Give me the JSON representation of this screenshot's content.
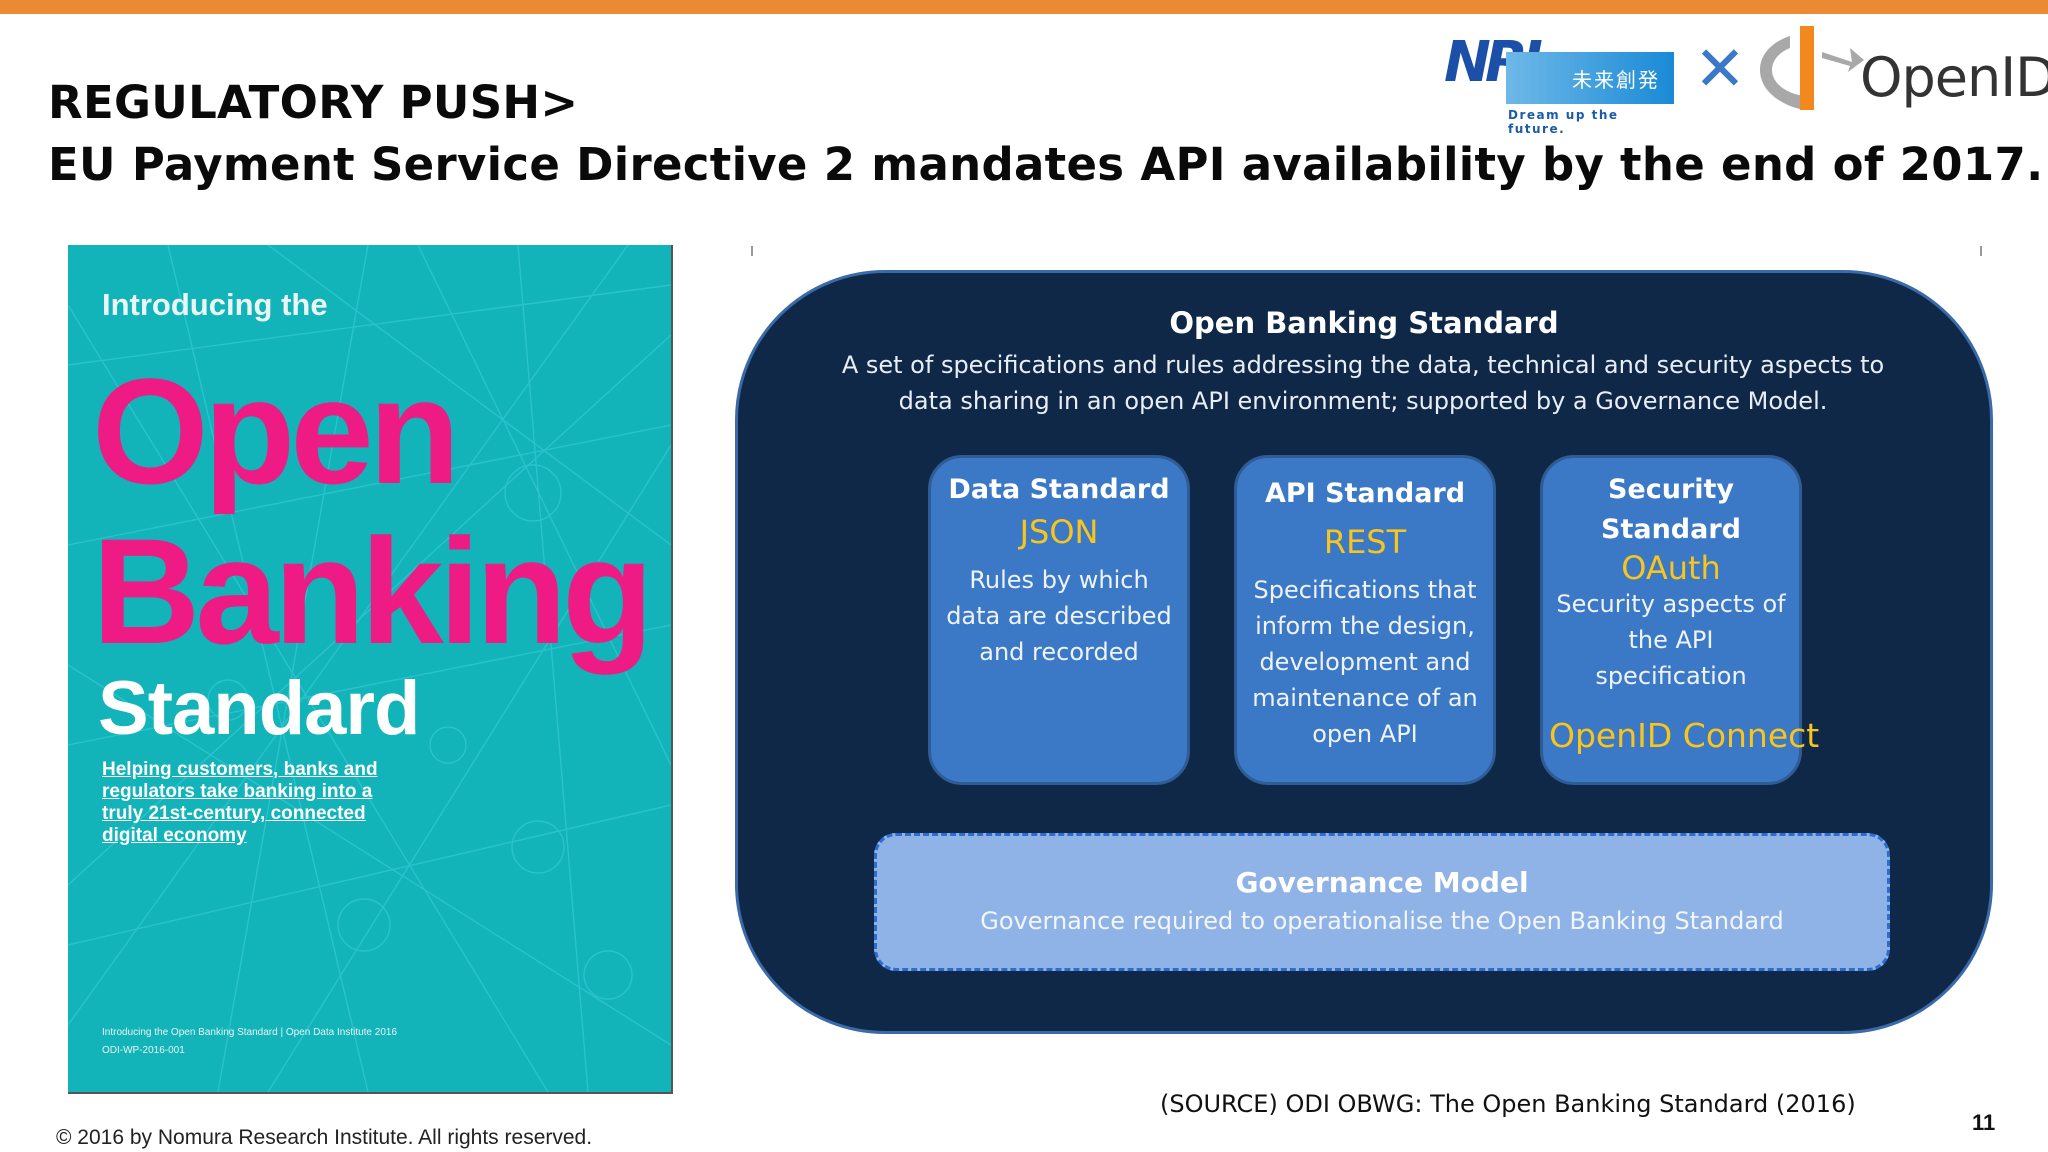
{
  "header": {
    "title_line1": "REGULATORY PUSH>",
    "title_line2": "EU Payment Service Directive 2 mandates API availability by the end of 2017."
  },
  "logos": {
    "nri_letters": "NRI",
    "nri_japanese": "未来創発",
    "nri_tagline": "Dream up the future.",
    "times_symbol": "✕",
    "openid_text": "OpenID",
    "openid_reg": "®"
  },
  "cover": {
    "intro": "Introducing the",
    "open": "Open",
    "banking": "Banking",
    "standard": "Standard",
    "subtitle": "Helping customers, banks and regulators take banking into a truly 21st-century, connected digital economy",
    "footer_line1": "Introducing the Open Banking Standard | Open Data Institute 2016",
    "footer_line2": "ODI-WP-2016-001"
  },
  "diagram": {
    "title": "Open Banking Standard",
    "description": "A set of specifications and rules addressing the data, technical and  security aspects to data sharing in an open API environment; supported by a Governance Model.",
    "boxes": [
      {
        "title": "Data Standard",
        "key": "JSON",
        "desc": "Rules by which data are described and recorded",
        "extra": ""
      },
      {
        "title": "API Standard",
        "key": "REST",
        "desc": "Specifications that inform the design, development and maintenance of an open API",
        "extra": ""
      },
      {
        "title": "Security Standard",
        "key": "OAuth",
        "desc": "Security aspects of the API specification",
        "extra": "OpenID Connect"
      }
    ],
    "governance": {
      "title": "Governance Model",
      "desc": "Governance required to operationalise the Open Banking Standard"
    }
  },
  "footer": {
    "source": "(SOURCE) ODI OBWG: The Open Banking Standard (2016)",
    "page_number": "11",
    "copyright": "© 2016 by Nomura Research Institute. All rights reserved."
  },
  "colors": {
    "accent_bar": "#ec8a34",
    "cover_bg": "#12b3b9",
    "cover_pink": "#ee1b85",
    "diagram_bg": "#0f2847",
    "box_bg": "#3b78c6",
    "highlight_yellow": "#f7c51d"
  }
}
